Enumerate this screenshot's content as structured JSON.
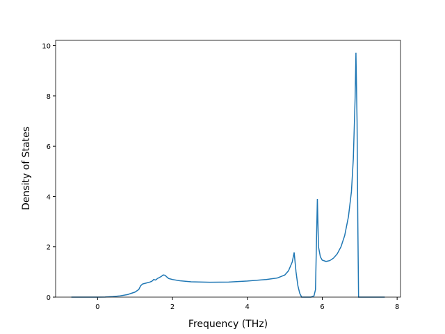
{
  "chart_data": {
    "type": "line",
    "x_label": "Frequency (THz)",
    "y_label": "Density of States",
    "xlim": [
      -1.12,
      8.09
    ],
    "ylim": [
      0,
      10.21
    ],
    "xticks": [
      0,
      2,
      4,
      6,
      8
    ],
    "yticks": [
      0,
      2,
      4,
      6,
      8,
      10
    ],
    "x": [
      -0.7,
      0.0,
      0.2,
      0.4,
      0.6,
      0.8,
      1.0,
      1.1,
      1.15,
      1.2,
      1.3,
      1.4,
      1.45,
      1.5,
      1.55,
      1.6,
      1.7,
      1.75,
      1.8,
      1.85,
      1.9,
      2.0,
      2.2,
      2.5,
      3.0,
      3.5,
      4.0,
      4.5,
      4.8,
      5.0,
      5.1,
      5.2,
      5.25,
      5.3,
      5.35,
      5.4,
      5.45,
      5.7,
      5.78,
      5.82,
      5.85,
      5.87,
      5.9,
      5.95,
      6.0,
      6.1,
      6.2,
      6.3,
      6.4,
      6.5,
      6.6,
      6.7,
      6.78,
      6.83,
      6.88,
      6.9,
      6.93,
      6.95,
      6.97,
      7.67
    ],
    "series": [
      {
        "color": "#1f77b4",
        "values": [
          0,
          0,
          0.005,
          0.02,
          0.05,
          0.1,
          0.2,
          0.3,
          0.45,
          0.52,
          0.56,
          0.6,
          0.63,
          0.7,
          0.68,
          0.74,
          0.82,
          0.88,
          0.87,
          0.8,
          0.74,
          0.7,
          0.65,
          0.61,
          0.59,
          0.6,
          0.64,
          0.7,
          0.76,
          0.88,
          1.05,
          1.4,
          1.78,
          1.0,
          0.45,
          0.15,
          0,
          0,
          0.05,
          0.3,
          2.5,
          3.9,
          2.0,
          1.6,
          1.47,
          1.42,
          1.45,
          1.55,
          1.72,
          2.0,
          2.45,
          3.2,
          4.2,
          5.5,
          8.0,
          9.72,
          7.0,
          3.0,
          0,
          0
        ]
      }
    ]
  }
}
